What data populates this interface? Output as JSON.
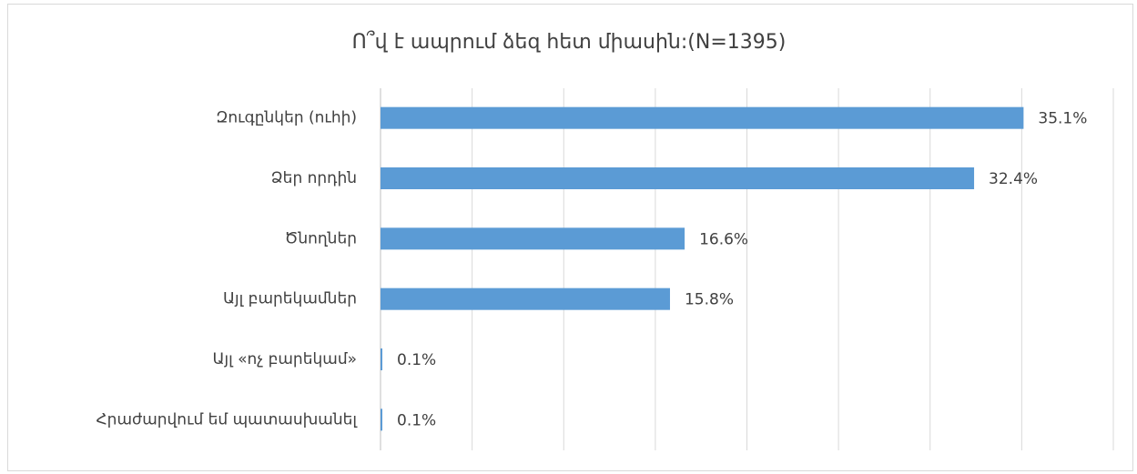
{
  "chart_data": {
    "type": "bar",
    "orientation": "horizontal",
    "title": "Ո՞վ է ապրում ձեզ հետ միասին:(N=1395)",
    "categories": [
      "Զուգընկեր (ուհի)",
      "Ձեր որդին",
      "Ծնողներ ",
      "Այլ բարեկամներ",
      "Այլ «ոչ բարեկամ»",
      "Հրաժարվում եմ պատասխանել"
    ],
    "values": [
      35.1,
      32.4,
      16.6,
      15.8,
      0.1,
      0.1
    ],
    "value_labels": [
      "35.1%",
      "32.4%",
      "16.6%",
      "15.8%",
      "0.1%",
      "0.1%"
    ],
    "color": "#5b9bd5",
    "xlim": [
      0,
      40
    ],
    "xticks": [
      0,
      5,
      10,
      15,
      20,
      25,
      30,
      35,
      40
    ],
    "grid": true
  }
}
